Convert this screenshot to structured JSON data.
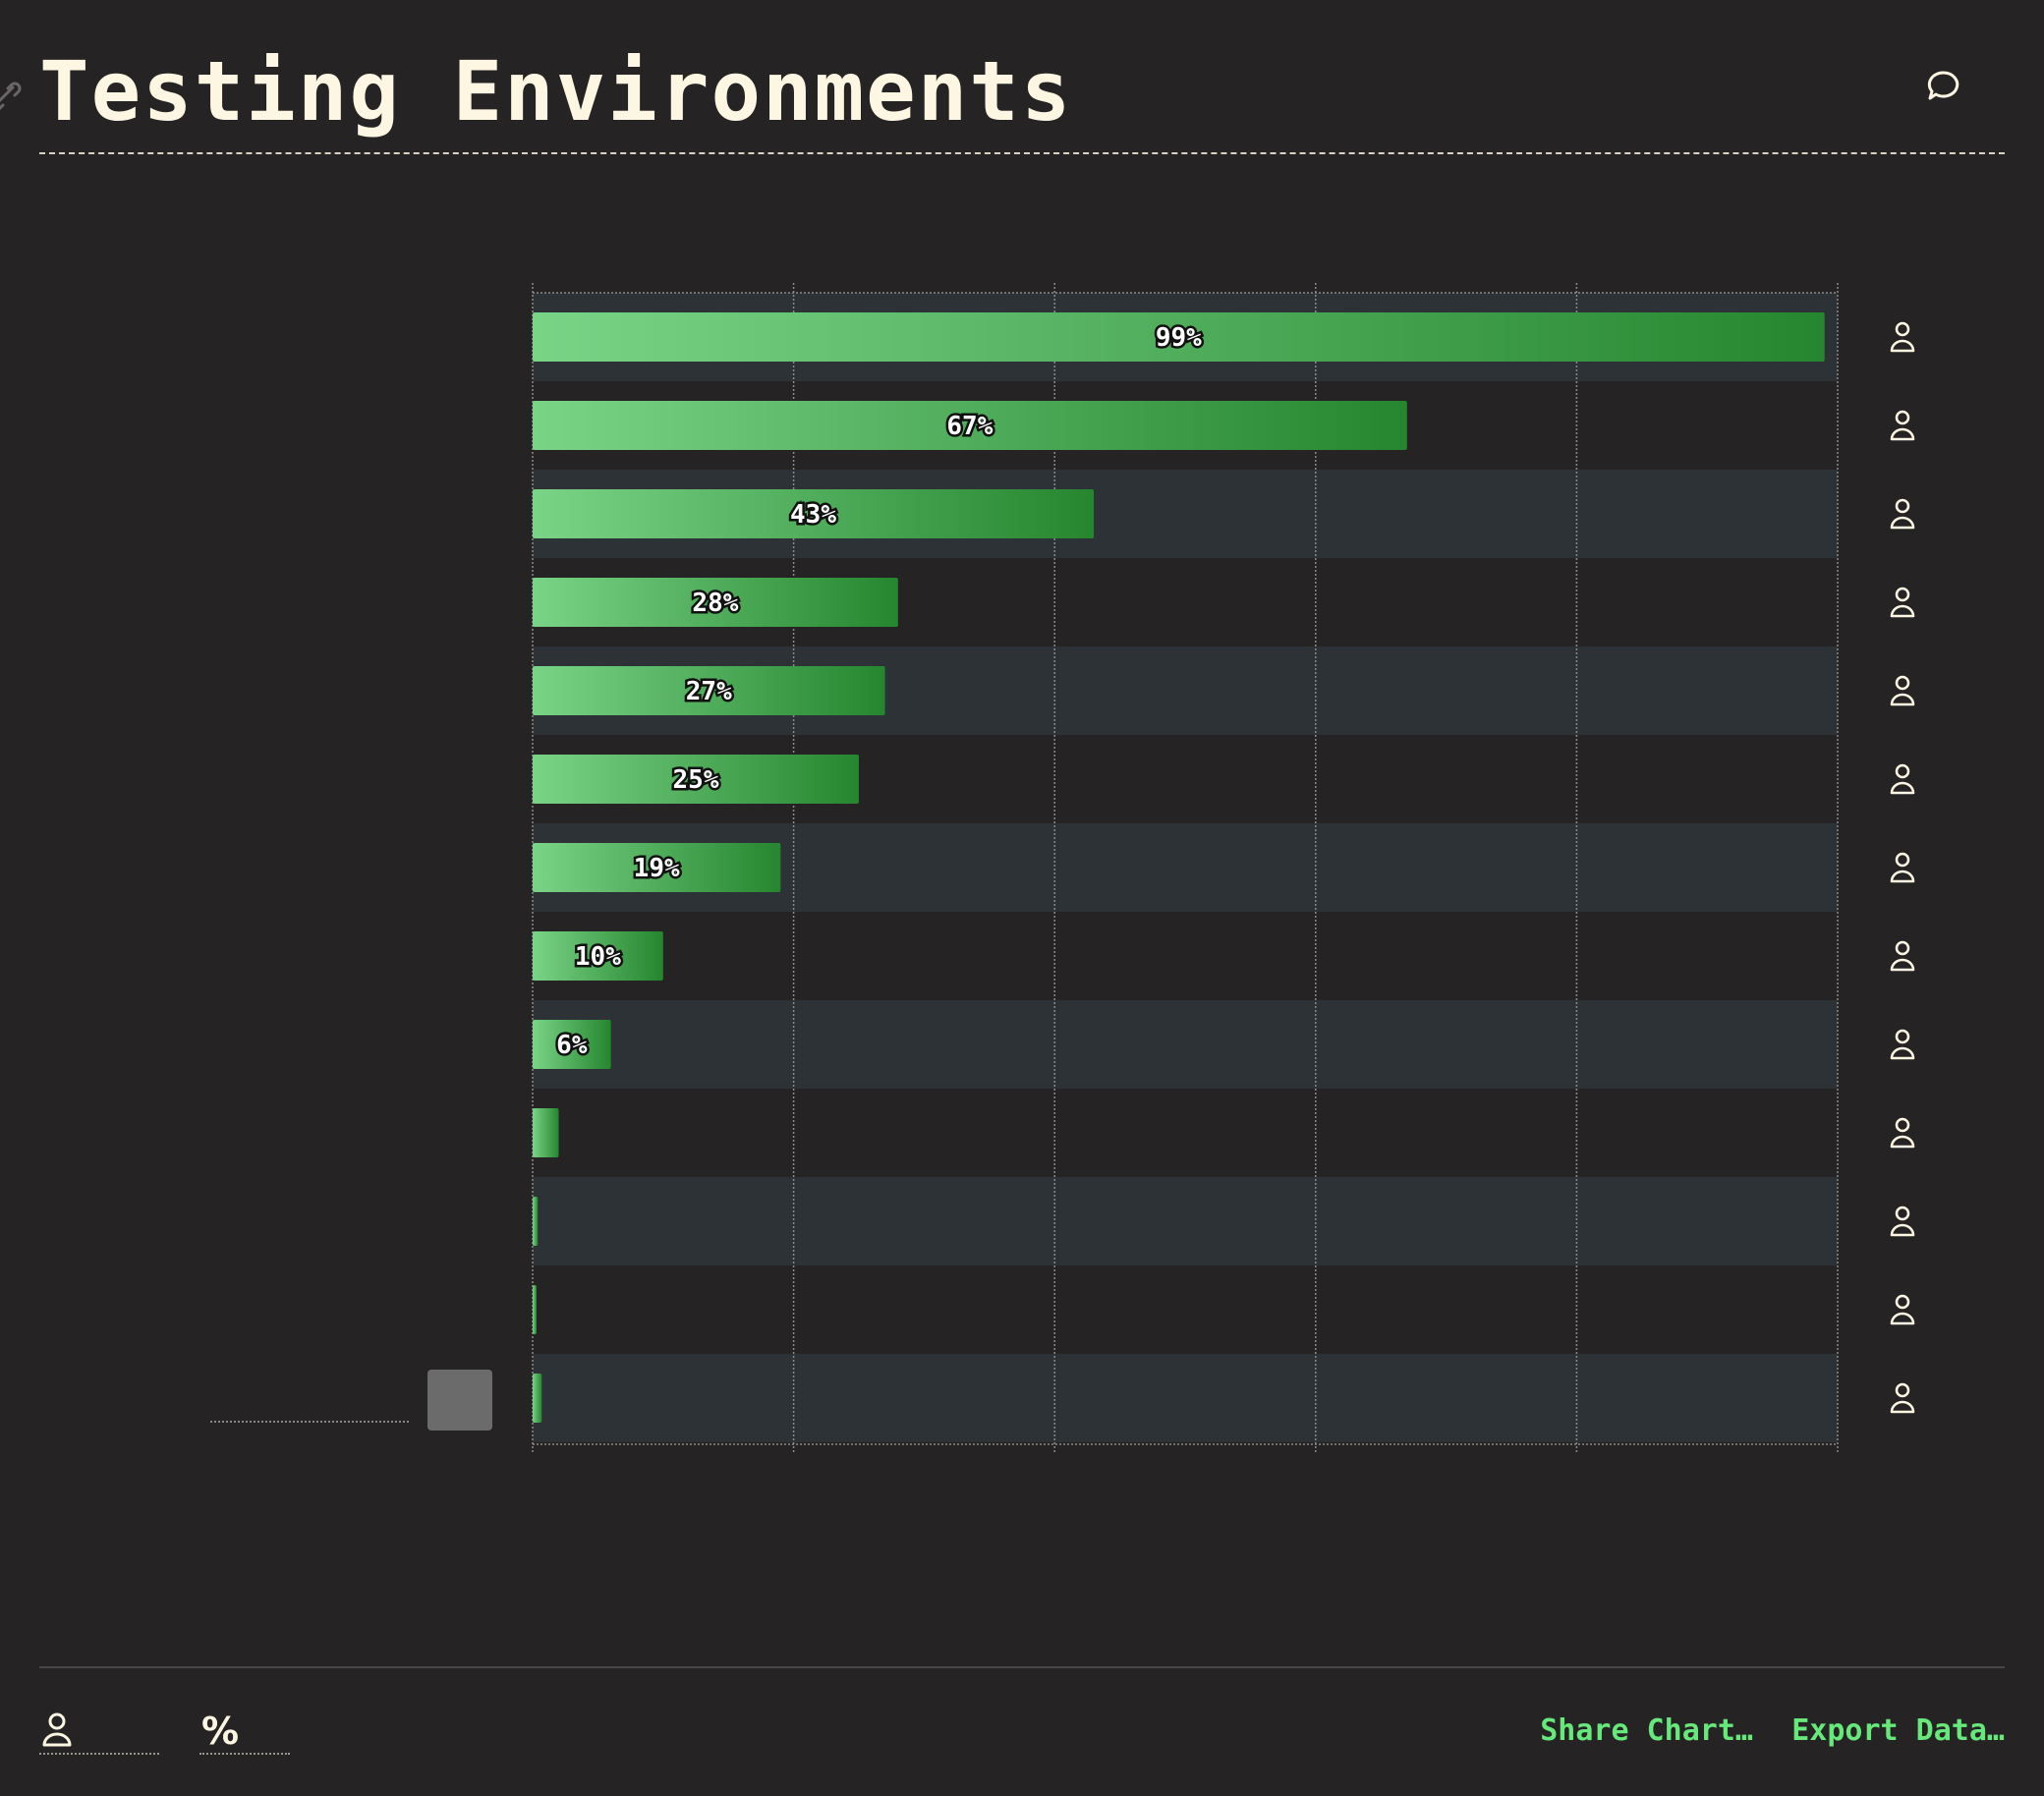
{
  "header": {
    "title": "Testing Environments"
  },
  "chart_data": {
    "type": "bar",
    "orientation": "horizontal",
    "title": "Testing Environments",
    "categories": [
      "",
      "",
      "",
      "",
      "",
      "",
      "",
      "",
      "",
      "",
      "",
      "",
      ""
    ],
    "values": [
      99,
      67,
      43,
      28,
      27,
      25,
      19,
      10,
      6,
      2,
      0.4,
      0.3,
      0.7
    ],
    "data_labels": [
      "99%",
      "67%",
      "43%",
      "28%",
      "27%",
      "25%",
      "19%",
      "10%",
      "6%",
      "",
      "",
      "",
      ""
    ],
    "xlim": [
      0,
      100
    ],
    "grid": true,
    "colors": {
      "bar_start": "#7ad487",
      "bar_end": "#26862f",
      "band": "#2d3236"
    }
  },
  "footer": {
    "share_label": "Share Chart…",
    "export_label": "Export Data…",
    "percent_symbol": "%"
  },
  "icons": {
    "row_icon": "person-icon",
    "header_icon": "comment-icon",
    "title_icon": "link-icon"
  }
}
